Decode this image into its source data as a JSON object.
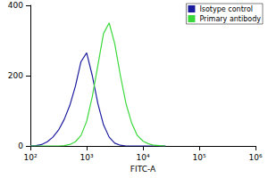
{
  "chart_data": {
    "type": "line",
    "x_label": "FITC-A",
    "log": "x",
    "x": [
      100,
      126,
      158,
      200,
      251,
      316,
      398,
      501,
      631,
      794,
      1000,
      1259,
      1585,
      1995,
      2512,
      3162,
      3981,
      5012,
      6310,
      7943,
      10000,
      12589,
      15849,
      19953,
      25119
    ],
    "series": [
      {
        "name": "Isotype control",
        "color": "#1c1c9e",
        "values": [
          0,
          1,
          4,
          12,
          25,
          45,
          75,
          115,
          170,
          240,
          265,
          200,
          120,
          60,
          25,
          8,
          2,
          0,
          0,
          0,
          0,
          0,
          0,
          0,
          0
        ]
      },
      {
        "name": "Primary antibody",
        "color": "#3ad83a",
        "values": [
          0,
          0,
          0,
          0,
          0,
          0,
          1,
          4,
          12,
          30,
          70,
          140,
          230,
          320,
          350,
          290,
          200,
          120,
          65,
          30,
          14,
          6,
          2,
          1,
          0
        ]
      }
    ],
    "xlim": [
      100,
      1000000
    ],
    "xticks": [
      {
        "value": 100,
        "label": "10²"
      },
      {
        "value": 1000,
        "label": "10³"
      },
      {
        "value": 10000,
        "label": "10⁴"
      },
      {
        "value": 100000,
        "label": "10⁵"
      },
      {
        "value": 1000000,
        "label": "10⁶"
      }
    ],
    "ylim": [
      0,
      400
    ],
    "yticks": [
      0,
      200,
      400
    ],
    "legend": "upper-right",
    "grid": false
  }
}
